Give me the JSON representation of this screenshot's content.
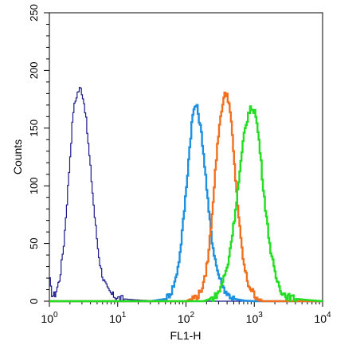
{
  "chart_data": {
    "type": "line",
    "title": "",
    "xlabel": "FL1-H",
    "ylabel": "Counts",
    "xscale": "log",
    "xlim": [
      1,
      10000
    ],
    "ylim": [
      0,
      250
    ],
    "grid": false,
    "legend": "none",
    "x_ticks": [
      {
        "value": 1,
        "base": "10",
        "exp": "0"
      },
      {
        "value": 10,
        "base": "10",
        "exp": "1"
      },
      {
        "value": 100,
        "base": "10",
        "exp": "2"
      },
      {
        "value": 1000,
        "base": "10",
        "exp": "3"
      },
      {
        "value": 10000,
        "base": "10",
        "exp": "4"
      }
    ],
    "y_ticks": [
      0,
      50,
      100,
      150,
      200,
      250
    ],
    "series": [
      {
        "color": "#1a1a8c",
        "x": [
          1,
          1.05,
          1.1,
          1.2,
          1.4,
          1.6,
          1.8,
          2.0,
          2.2,
          2.5,
          2.8,
          3.0,
          3.3,
          3.6,
          4.0,
          4.5,
          5.0,
          5.5,
          6.0,
          7.0,
          8.0,
          9.0,
          10,
          12,
          15,
          20,
          30,
          50,
          100,
          1000,
          10000
        ],
        "y": [
          18,
          8,
          5,
          6,
          20,
          50,
          90,
          130,
          165,
          180,
          185,
          180,
          165,
          140,
          110,
          75,
          48,
          30,
          20,
          10,
          6,
          4,
          3,
          2,
          1.5,
          1,
          0.5,
          0.3,
          0,
          0,
          0
        ]
      },
      {
        "color": "#1e90e0",
        "x": [
          1,
          30,
          50,
          60,
          70,
          80,
          90,
          100,
          110,
          120,
          130,
          140,
          150,
          170,
          190,
          210,
          240,
          280,
          330,
          400,
          500,
          700,
          1000,
          10000
        ],
        "y": [
          0,
          0,
          2,
          8,
          20,
          40,
          70,
          100,
          130,
          155,
          168,
          170,
          162,
          140,
          110,
          80,
          50,
          28,
          14,
          6,
          2,
          0.5,
          0,
          0
        ]
      },
      {
        "color": "#f07020",
        "x": [
          1,
          100,
          150,
          180,
          210,
          240,
          270,
          300,
          330,
          360,
          390,
          420,
          460,
          500,
          560,
          620,
          700,
          800,
          1000,
          1300,
          10000
        ],
        "y": [
          0,
          0,
          5,
          15,
          40,
          80,
          120,
          150,
          168,
          178,
          180,
          172,
          150,
          120,
          85,
          55,
          30,
          15,
          5,
          0,
          0
        ]
      },
      {
        "color": "#22dd22",
        "x": [
          1,
          180,
          250,
          300,
          400,
          500,
          600,
          700,
          800,
          900,
          1000,
          1100,
          1200,
          1300,
          1500,
          1700,
          2000,
          2500,
          3000,
          4000,
          6000,
          10000
        ],
        "y": [
          0,
          0,
          3,
          8,
          30,
          70,
          110,
          145,
          162,
          168,
          165,
          150,
          130,
          105,
          70,
          45,
          22,
          8,
          4,
          2,
          1,
          0
        ]
      }
    ]
  }
}
